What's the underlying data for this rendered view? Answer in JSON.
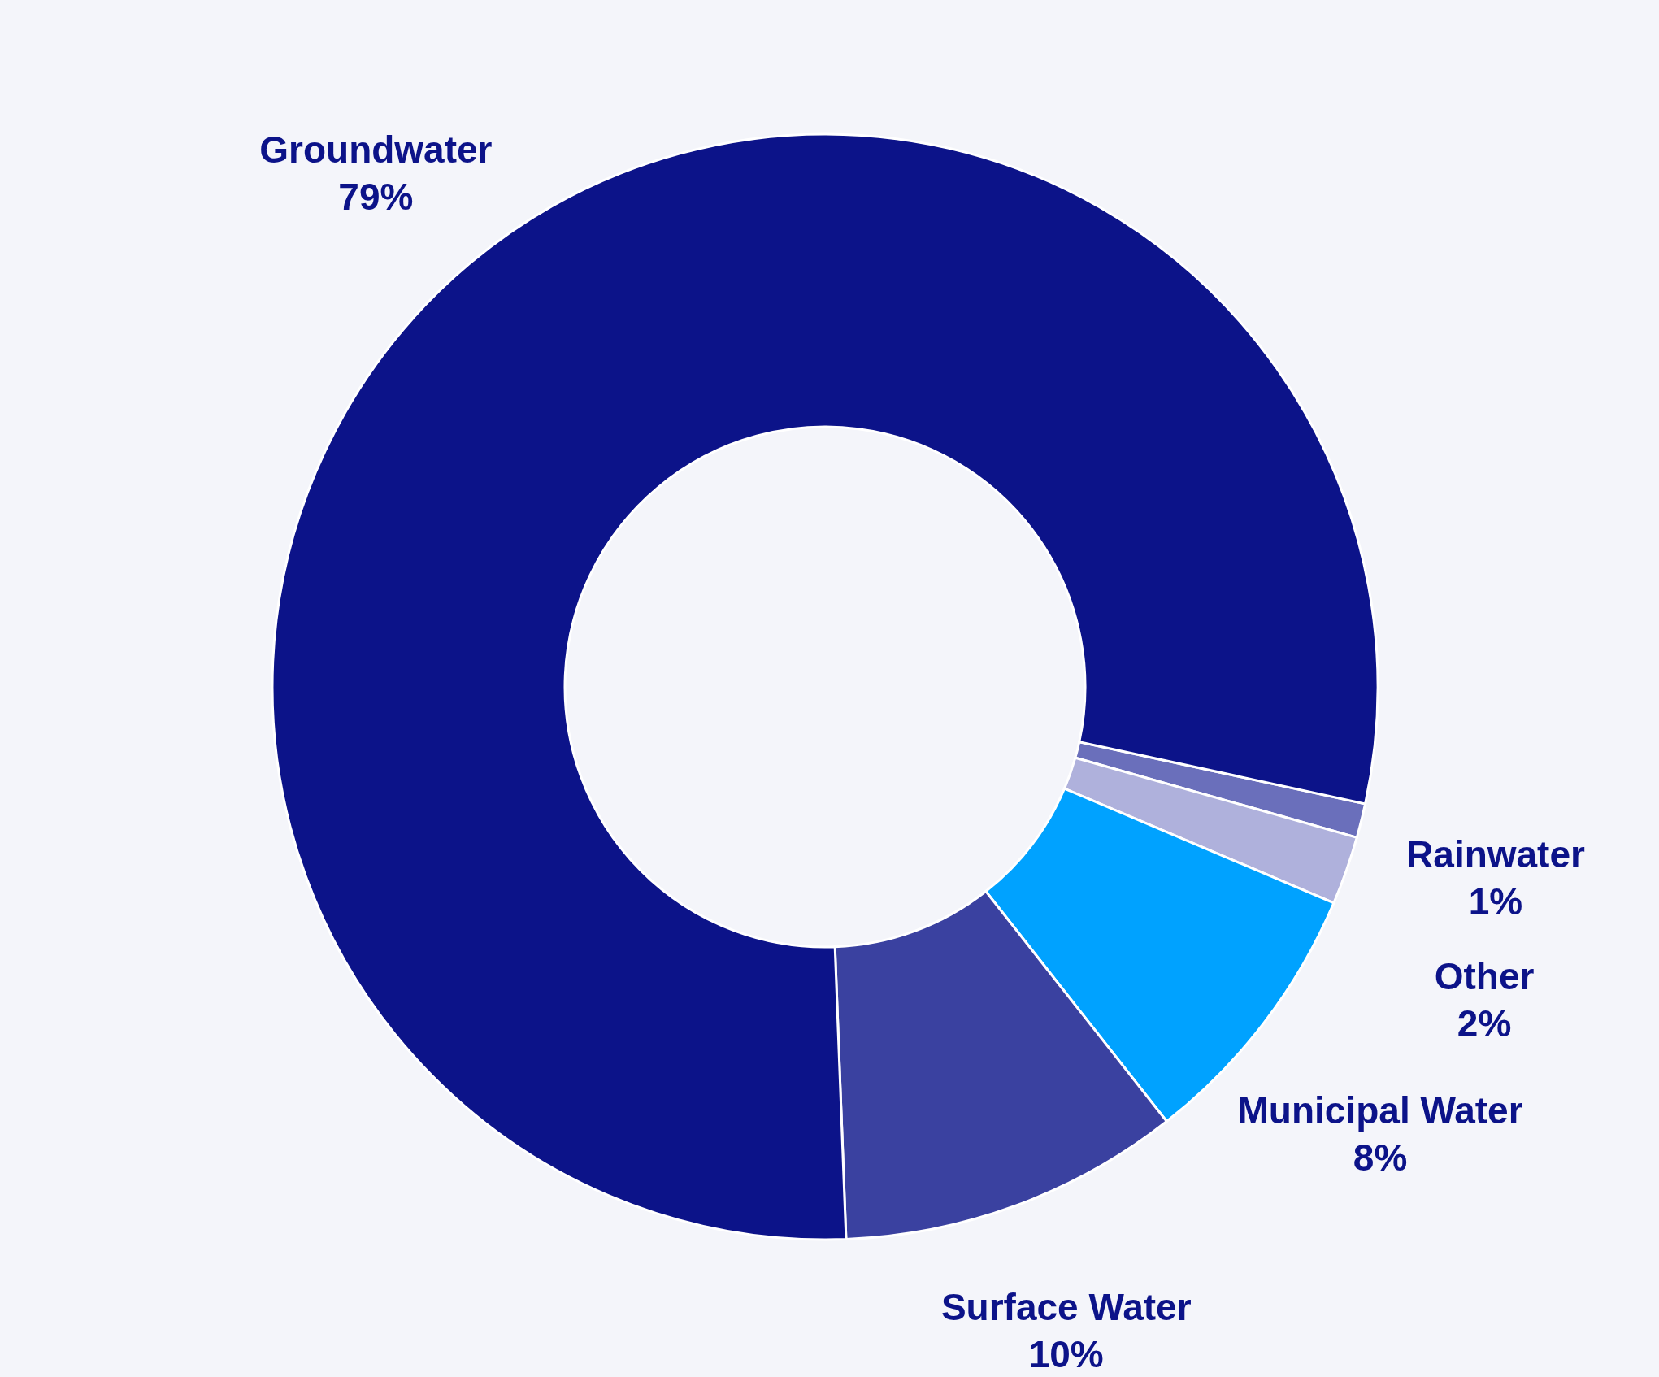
{
  "chart_data": {
    "type": "donut",
    "categories": [
      "Rainwater",
      "Other",
      "Municipal Water",
      "Surface Water",
      "Groundwater"
    ],
    "values": [
      1,
      2,
      8,
      10,
      79
    ],
    "colors": [
      "#6a6fbb",
      "#afb1dc",
      "#00a2ff",
      "#3a41a0",
      "#0c1389"
    ],
    "value_labels": [
      "1%",
      "2%",
      "8%",
      "10%",
      "79%"
    ]
  }
}
